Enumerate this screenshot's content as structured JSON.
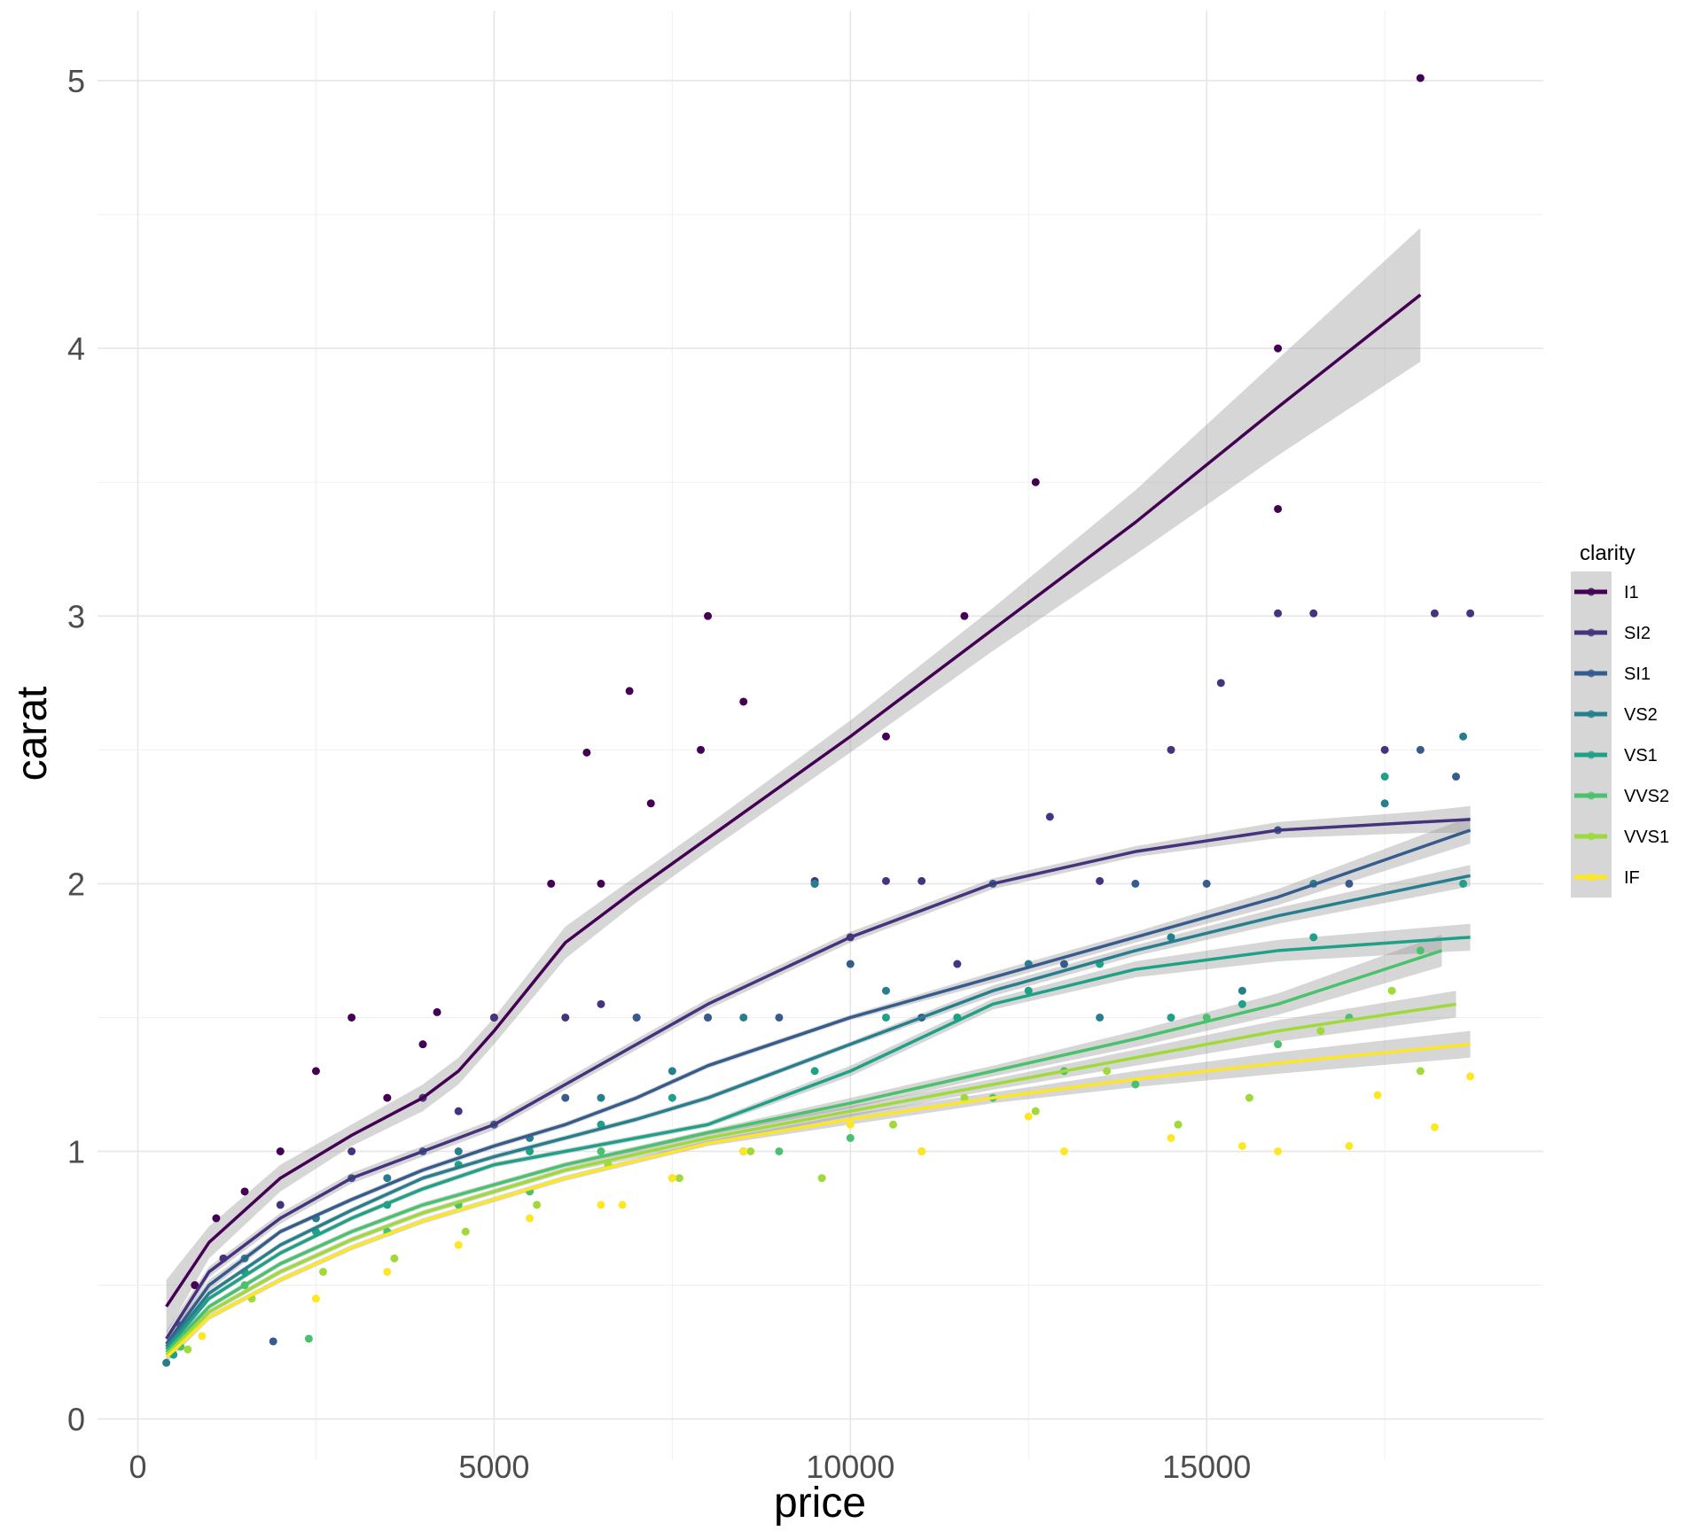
{
  "chart_data": {
    "type": "scatter",
    "title": "",
    "xlabel": "price",
    "ylabel": "carat",
    "xlim": [
      -1200,
      19600
    ],
    "ylim": [
      -0.08,
      5.2
    ],
    "grid": true,
    "x_ticks": [
      0,
      5000,
      10000,
      15000
    ],
    "x_tick_labels": [
      "0",
      "5000",
      "10000",
      "15000"
    ],
    "y_ticks": [
      0,
      1,
      2,
      3,
      4,
      5
    ],
    "y_tick_labels": [
      "0",
      "1",
      "2",
      "3",
      "4",
      "5"
    ],
    "legend": {
      "title": "clarity",
      "placement": "right"
    },
    "series": [
      {
        "name": "I1",
        "color": "#440154",
        "smooth": {
          "x": [
            400,
            1000,
            2000,
            3000,
            4000,
            4500,
            5000,
            6000,
            7000,
            8000,
            10000,
            12000,
            14000,
            16000,
            18000
          ],
          "y": [
            0.42,
            0.66,
            0.9,
            1.06,
            1.2,
            1.3,
            1.45,
            1.78,
            1.98,
            2.17,
            2.55,
            2.95,
            3.35,
            3.78,
            4.2
          ],
          "se": [
            0.1,
            0.06,
            0.05,
            0.04,
            0.05,
            0.05,
            0.05,
            0.06,
            0.05,
            0.05,
            0.06,
            0.08,
            0.12,
            0.18,
            0.25
          ]
        },
        "points": {
          "x": [
            18000,
            16000,
            12600,
            16000,
            8000,
            11600,
            8500,
            6900,
            7900,
            6300,
            5800,
            1100,
            2500,
            3000,
            4200,
            5000,
            6500,
            7200,
            9500,
            10500,
            2000,
            3500,
            4000,
            1500,
            800
          ],
          "y": [
            5.01,
            4.0,
            3.5,
            3.4,
            3.0,
            3.0,
            2.68,
            2.72,
            2.5,
            2.49,
            2.0,
            0.75,
            1.3,
            1.5,
            1.52,
            1.5,
            2.0,
            2.3,
            2.0,
            2.55,
            1.0,
            1.2,
            1.4,
            0.85,
            0.5
          ]
        }
      },
      {
        "name": "SI2",
        "color": "#46337E",
        "smooth": {
          "x": [
            400,
            1000,
            2000,
            3000,
            4000,
            5000,
            6000,
            7000,
            8000,
            10000,
            12000,
            14000,
            16000,
            18000,
            18700
          ],
          "y": [
            0.3,
            0.55,
            0.75,
            0.9,
            1.0,
            1.1,
            1.25,
            1.4,
            1.55,
            1.8,
            2.0,
            2.12,
            2.2,
            2.23,
            2.24
          ],
          "se": [
            0.03,
            0.02,
            0.02,
            0.02,
            0.02,
            0.02,
            0.02,
            0.02,
            0.02,
            0.02,
            0.02,
            0.02,
            0.03,
            0.04,
            0.05
          ]
        },
        "points": {
          "x": [
            16000,
            16500,
            18200,
            18700,
            15200,
            14500,
            12800,
            11000,
            10500,
            9500,
            8000,
            7000,
            6000,
            5000,
            4000,
            3000,
            2000,
            1200,
            13500,
            17500,
            10000,
            11500,
            6500,
            4500
          ],
          "y": [
            3.01,
            3.01,
            3.01,
            3.01,
            2.75,
            2.5,
            2.25,
            2.01,
            2.01,
            2.01,
            1.5,
            1.5,
            1.5,
            1.5,
            1.2,
            1.0,
            0.8,
            0.6,
            2.01,
            2.5,
            1.8,
            1.7,
            1.55,
            1.15
          ]
        }
      },
      {
        "name": "SI1",
        "color": "#365C8D",
        "smooth": {
          "x": [
            400,
            1000,
            2000,
            3000,
            4000,
            5000,
            6000,
            7000,
            8000,
            10000,
            12000,
            14000,
            16000,
            18700
          ],
          "y": [
            0.28,
            0.5,
            0.7,
            0.82,
            0.93,
            1.02,
            1.1,
            1.2,
            1.32,
            1.5,
            1.65,
            1.8,
            1.95,
            2.2
          ],
          "se": [
            0.02,
            0.02,
            0.01,
            0.01,
            0.01,
            0.01,
            0.01,
            0.01,
            0.01,
            0.01,
            0.02,
            0.02,
            0.03,
            0.05
          ]
        },
        "points": {
          "x": [
            1900,
            3000,
            4000,
            5000,
            6000,
            7000,
            8000,
            9000,
            10000,
            11000,
            12000,
            13000,
            14000,
            15000,
            16000,
            17000,
            18000,
            18500,
            600
          ],
          "y": [
            0.29,
            0.9,
            1.0,
            1.1,
            1.2,
            1.5,
            1.5,
            1.5,
            1.7,
            1.5,
            2.0,
            1.7,
            2.0,
            2.0,
            2.2,
            2.0,
            2.5,
            2.4,
            0.35
          ]
        }
      },
      {
        "name": "VS2",
        "color": "#277F8E",
        "smooth": {
          "x": [
            400,
            1000,
            2000,
            3000,
            4000,
            5000,
            6000,
            7000,
            8000,
            10000,
            12000,
            14000,
            16000,
            18700
          ],
          "y": [
            0.27,
            0.47,
            0.65,
            0.78,
            0.9,
            0.98,
            1.05,
            1.12,
            1.2,
            1.4,
            1.6,
            1.75,
            1.88,
            2.03
          ],
          "se": [
            0.02,
            0.01,
            0.01,
            0.01,
            0.01,
            0.01,
            0.01,
            0.01,
            0.01,
            0.01,
            0.02,
            0.02,
            0.03,
            0.04
          ]
        },
        "points": {
          "x": [
            400,
            1500,
            2500,
            3500,
            4500,
            5500,
            6500,
            7500,
            8500,
            9500,
            10500,
            11500,
            12500,
            13500,
            14500,
            15500,
            16500,
            17500,
            18600
          ],
          "y": [
            0.21,
            0.6,
            0.75,
            0.9,
            1.0,
            1.05,
            1.2,
            1.3,
            1.5,
            2.0,
            1.6,
            1.5,
            1.7,
            1.5,
            1.8,
            1.6,
            2.0,
            2.3,
            2.55
          ]
        }
      },
      {
        "name": "VS1",
        "color": "#1FA187",
        "smooth": {
          "x": [
            400,
            1000,
            2000,
            3000,
            4000,
            5000,
            6000,
            7000,
            8000,
            10000,
            12000,
            14000,
            16000,
            18700
          ],
          "y": [
            0.26,
            0.45,
            0.62,
            0.75,
            0.86,
            0.95,
            1.0,
            1.05,
            1.1,
            1.3,
            1.55,
            1.68,
            1.75,
            1.8
          ],
          "se": [
            0.02,
            0.01,
            0.01,
            0.01,
            0.01,
            0.01,
            0.01,
            0.01,
            0.01,
            0.02,
            0.02,
            0.03,
            0.04,
            0.05
          ]
        },
        "points": {
          "x": [
            500,
            1500,
            2500,
            3500,
            4500,
            5500,
            6500,
            7500,
            8500,
            9500,
            10500,
            11500,
            12500,
            13500,
            14500,
            15500,
            16500,
            17500,
            18600
          ],
          "y": [
            0.24,
            0.55,
            0.7,
            0.8,
            0.95,
            1.0,
            1.1,
            1.2,
            1.0,
            1.3,
            1.5,
            1.5,
            1.6,
            1.7,
            1.5,
            1.55,
            1.8,
            2.4,
            2.0
          ]
        }
      },
      {
        "name": "VVS2",
        "color": "#4AC16D",
        "smooth": {
          "x": [
            400,
            1000,
            2000,
            3000,
            4000,
            6000,
            8000,
            10000,
            12000,
            14000,
            16000,
            18300
          ],
          "y": [
            0.25,
            0.42,
            0.58,
            0.7,
            0.8,
            0.95,
            1.07,
            1.18,
            1.3,
            1.42,
            1.55,
            1.75
          ],
          "se": [
            0.02,
            0.01,
            0.01,
            0.01,
            0.01,
            0.01,
            0.01,
            0.02,
            0.02,
            0.03,
            0.04,
            0.06
          ]
        },
        "points": {
          "x": [
            600,
            1500,
            2400,
            3500,
            4500,
            5500,
            6500,
            7500,
            8500,
            9000,
            10000,
            11000,
            12000,
            13000,
            14000,
            15000,
            16000,
            17000,
            18000
          ],
          "y": [
            0.27,
            0.5,
            0.3,
            0.7,
            0.8,
            0.85,
            1.0,
            0.9,
            1.0,
            1.0,
            1.05,
            1.0,
            1.2,
            1.3,
            1.25,
            1.5,
            1.4,
            1.5,
            1.75
          ]
        }
      },
      {
        "name": "VVS1",
        "color": "#9FDA3A",
        "smooth": {
          "x": [
            400,
            1000,
            2000,
            3000,
            4000,
            6000,
            8000,
            10000,
            12000,
            14000,
            16000,
            18500
          ],
          "y": [
            0.24,
            0.4,
            0.55,
            0.67,
            0.77,
            0.93,
            1.05,
            1.15,
            1.25,
            1.35,
            1.45,
            1.55
          ],
          "se": [
            0.02,
            0.01,
            0.01,
            0.01,
            0.01,
            0.01,
            0.02,
            0.02,
            0.02,
            0.03,
            0.04,
            0.05
          ]
        },
        "points": {
          "x": [
            700,
            1600,
            2600,
            3600,
            4600,
            5600,
            6600,
            7600,
            8600,
            9600,
            10600,
            11600,
            12600,
            13600,
            14600,
            15600,
            16600,
            17600,
            18000
          ],
          "y": [
            0.26,
            0.45,
            0.55,
            0.6,
            0.7,
            0.8,
            0.95,
            0.9,
            1.0,
            0.9,
            1.1,
            1.2,
            1.15,
            1.3,
            1.1,
            1.2,
            1.45,
            1.6,
            1.3
          ]
        }
      },
      {
        "name": "IF",
        "color": "#FDE725",
        "smooth": {
          "x": [
            400,
            1000,
            2000,
            3000,
            4000,
            6000,
            8000,
            10000,
            12000,
            14000,
            16000,
            18700
          ],
          "y": [
            0.23,
            0.38,
            0.52,
            0.64,
            0.74,
            0.9,
            1.03,
            1.12,
            1.2,
            1.27,
            1.33,
            1.4
          ],
          "se": [
            0.02,
            0.01,
            0.01,
            0.01,
            0.01,
            0.01,
            0.01,
            0.02,
            0.02,
            0.03,
            0.04,
            0.05
          ]
        },
        "points": {
          "x": [
            900,
            2500,
            3500,
            4500,
            5500,
            6500,
            6800,
            7500,
            8500,
            10000,
            11000,
            12500,
            13000,
            14500,
            15500,
            16000,
            17000,
            17400,
            18200,
            18700
          ],
          "y": [
            0.31,
            0.45,
            0.55,
            0.65,
            0.75,
            0.8,
            0.8,
            0.9,
            1.0,
            1.1,
            1.0,
            1.13,
            1.0,
            1.05,
            1.02,
            1.0,
            1.02,
            1.21,
            1.09,
            1.28
          ]
        }
      }
    ]
  }
}
